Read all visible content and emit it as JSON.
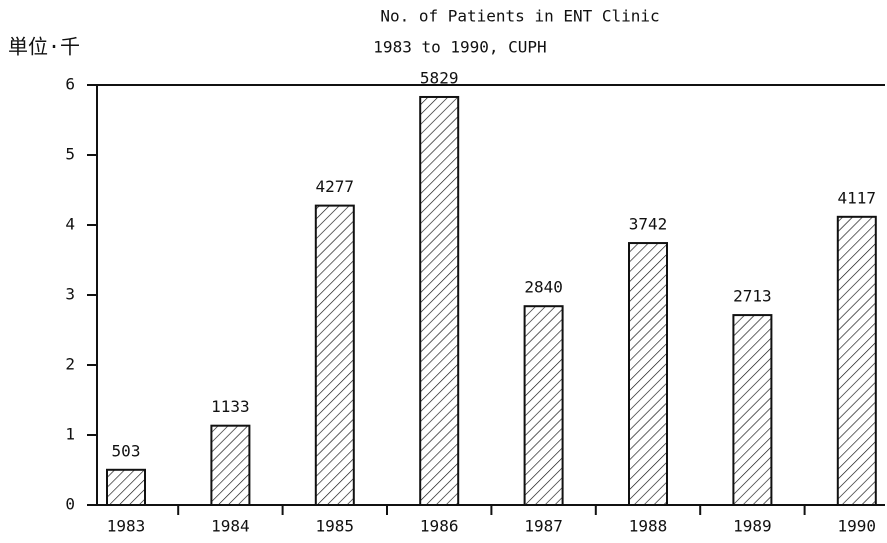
{
  "chart_data": {
    "type": "bar",
    "title": "No. of Patients in ENT Clinic",
    "subtitle": "1983 to 1990, CUPH",
    "y_label": "単位·千",
    "categories": [
      "1983",
      "1984",
      "1985",
      "1986",
      "1987",
      "1988",
      "1989",
      "1990"
    ],
    "values": [
      0.503,
      1.133,
      4.277,
      5.829,
      2.84,
      3.742,
      2.713,
      4.117
    ],
    "value_labels": [
      "503",
      "1133",
      "4277",
      "5829",
      "2840",
      "3742",
      "2713",
      "4117"
    ],
    "color": "#111111",
    "ylim": [
      0,
      6
    ],
    "yticks": [
      0,
      1,
      2,
      3,
      4,
      5,
      6
    ]
  }
}
